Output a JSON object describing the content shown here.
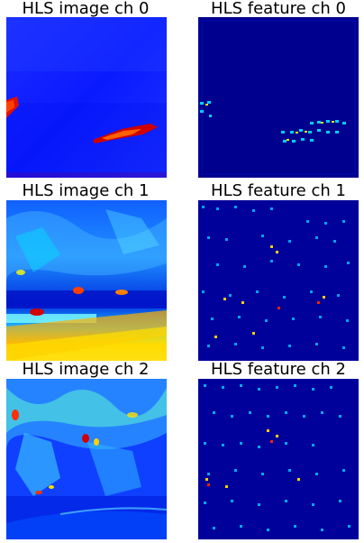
{
  "figure": {
    "rows": [
      {
        "image_title": "HLS image ch 0",
        "feature_title": "HLS feature ch 0"
      },
      {
        "image_title": "HLS image ch 1",
        "feature_title": "HLS feature ch 1"
      },
      {
        "image_title": "HLS image ch 2",
        "feature_title": "HLS feature ch 2"
      }
    ],
    "colormap": "jet"
  },
  "colors": {
    "background": "#ffffff",
    "jet_dark_blue": "#00007f",
    "jet_blue": "#0000ff",
    "jet_cyan": "#00e5ff",
    "jet_yellow": "#ffe600",
    "jet_red": "#ff0000"
  }
}
